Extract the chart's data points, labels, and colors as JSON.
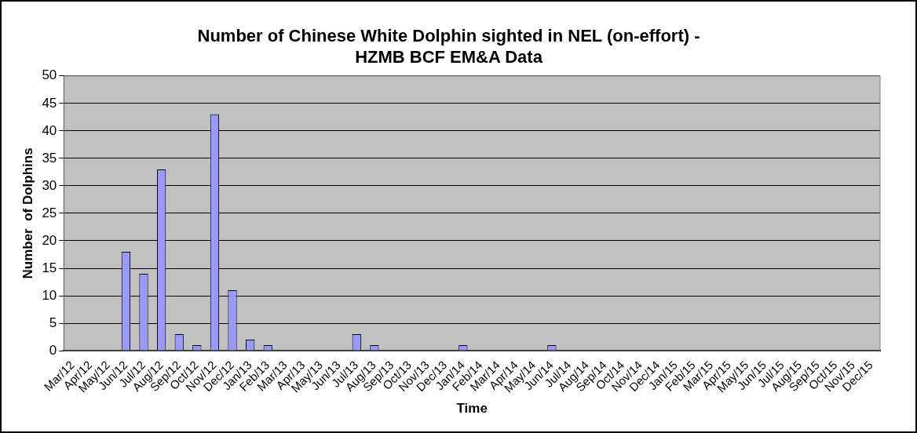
{
  "chart_data": {
    "type": "bar",
    "title": [
      "Number of Chinese White Dolphin sighted in NEL (on-effort) -",
      "HZMB BCF EM&A Data"
    ],
    "xlabel": "Time",
    "ylabel": "Number  of Dolphins",
    "categories": [
      "Mar/12",
      "Apr/12",
      "May/12",
      "Jun/12",
      "Jul/12",
      "Aug/12",
      "Sep/12",
      "Oct/12",
      "Nov/12",
      "Dec/12",
      "Jan/13",
      "Feb/13",
      "Mar/13",
      "Apr/13",
      "May/13",
      "Jun/13",
      "Jul/13",
      "Aug/13",
      "Sep/13",
      "Oct/13",
      "Nov/13",
      "Dec/13",
      "Jan/14",
      "Feb/14",
      "Mar/14",
      "Apr/14",
      "May/14",
      "Jun/14",
      "Jul/14",
      "Aug/14",
      "Sep/14",
      "Oct/14",
      "Nov/14",
      "Dec/14",
      "Jan/15",
      "Feb/15",
      "Mar/15",
      "Apr/15",
      "May/15",
      "Jun/15",
      "Jul/15",
      "Aug/15",
      "Sep/15",
      "Oct/15",
      "Nov/15",
      "Dec/15"
    ],
    "values": [
      0,
      0,
      0,
      18,
      14,
      33,
      3,
      1,
      43,
      11,
      2,
      1,
      0,
      0,
      0,
      0,
      3,
      1,
      0,
      0,
      0,
      0,
      1,
      0,
      0,
      0,
      0,
      1,
      0,
      0,
      0,
      0,
      0,
      0,
      0,
      0,
      0,
      0,
      0,
      0,
      0,
      0,
      0,
      0,
      0,
      0
    ],
    "color": "#9999ff",
    "ylim": [
      0,
      50
    ],
    "yticks": [
      0,
      5,
      10,
      15,
      20,
      25,
      30,
      35,
      40,
      45,
      50
    ],
    "grid": "y",
    "legend": false
  }
}
